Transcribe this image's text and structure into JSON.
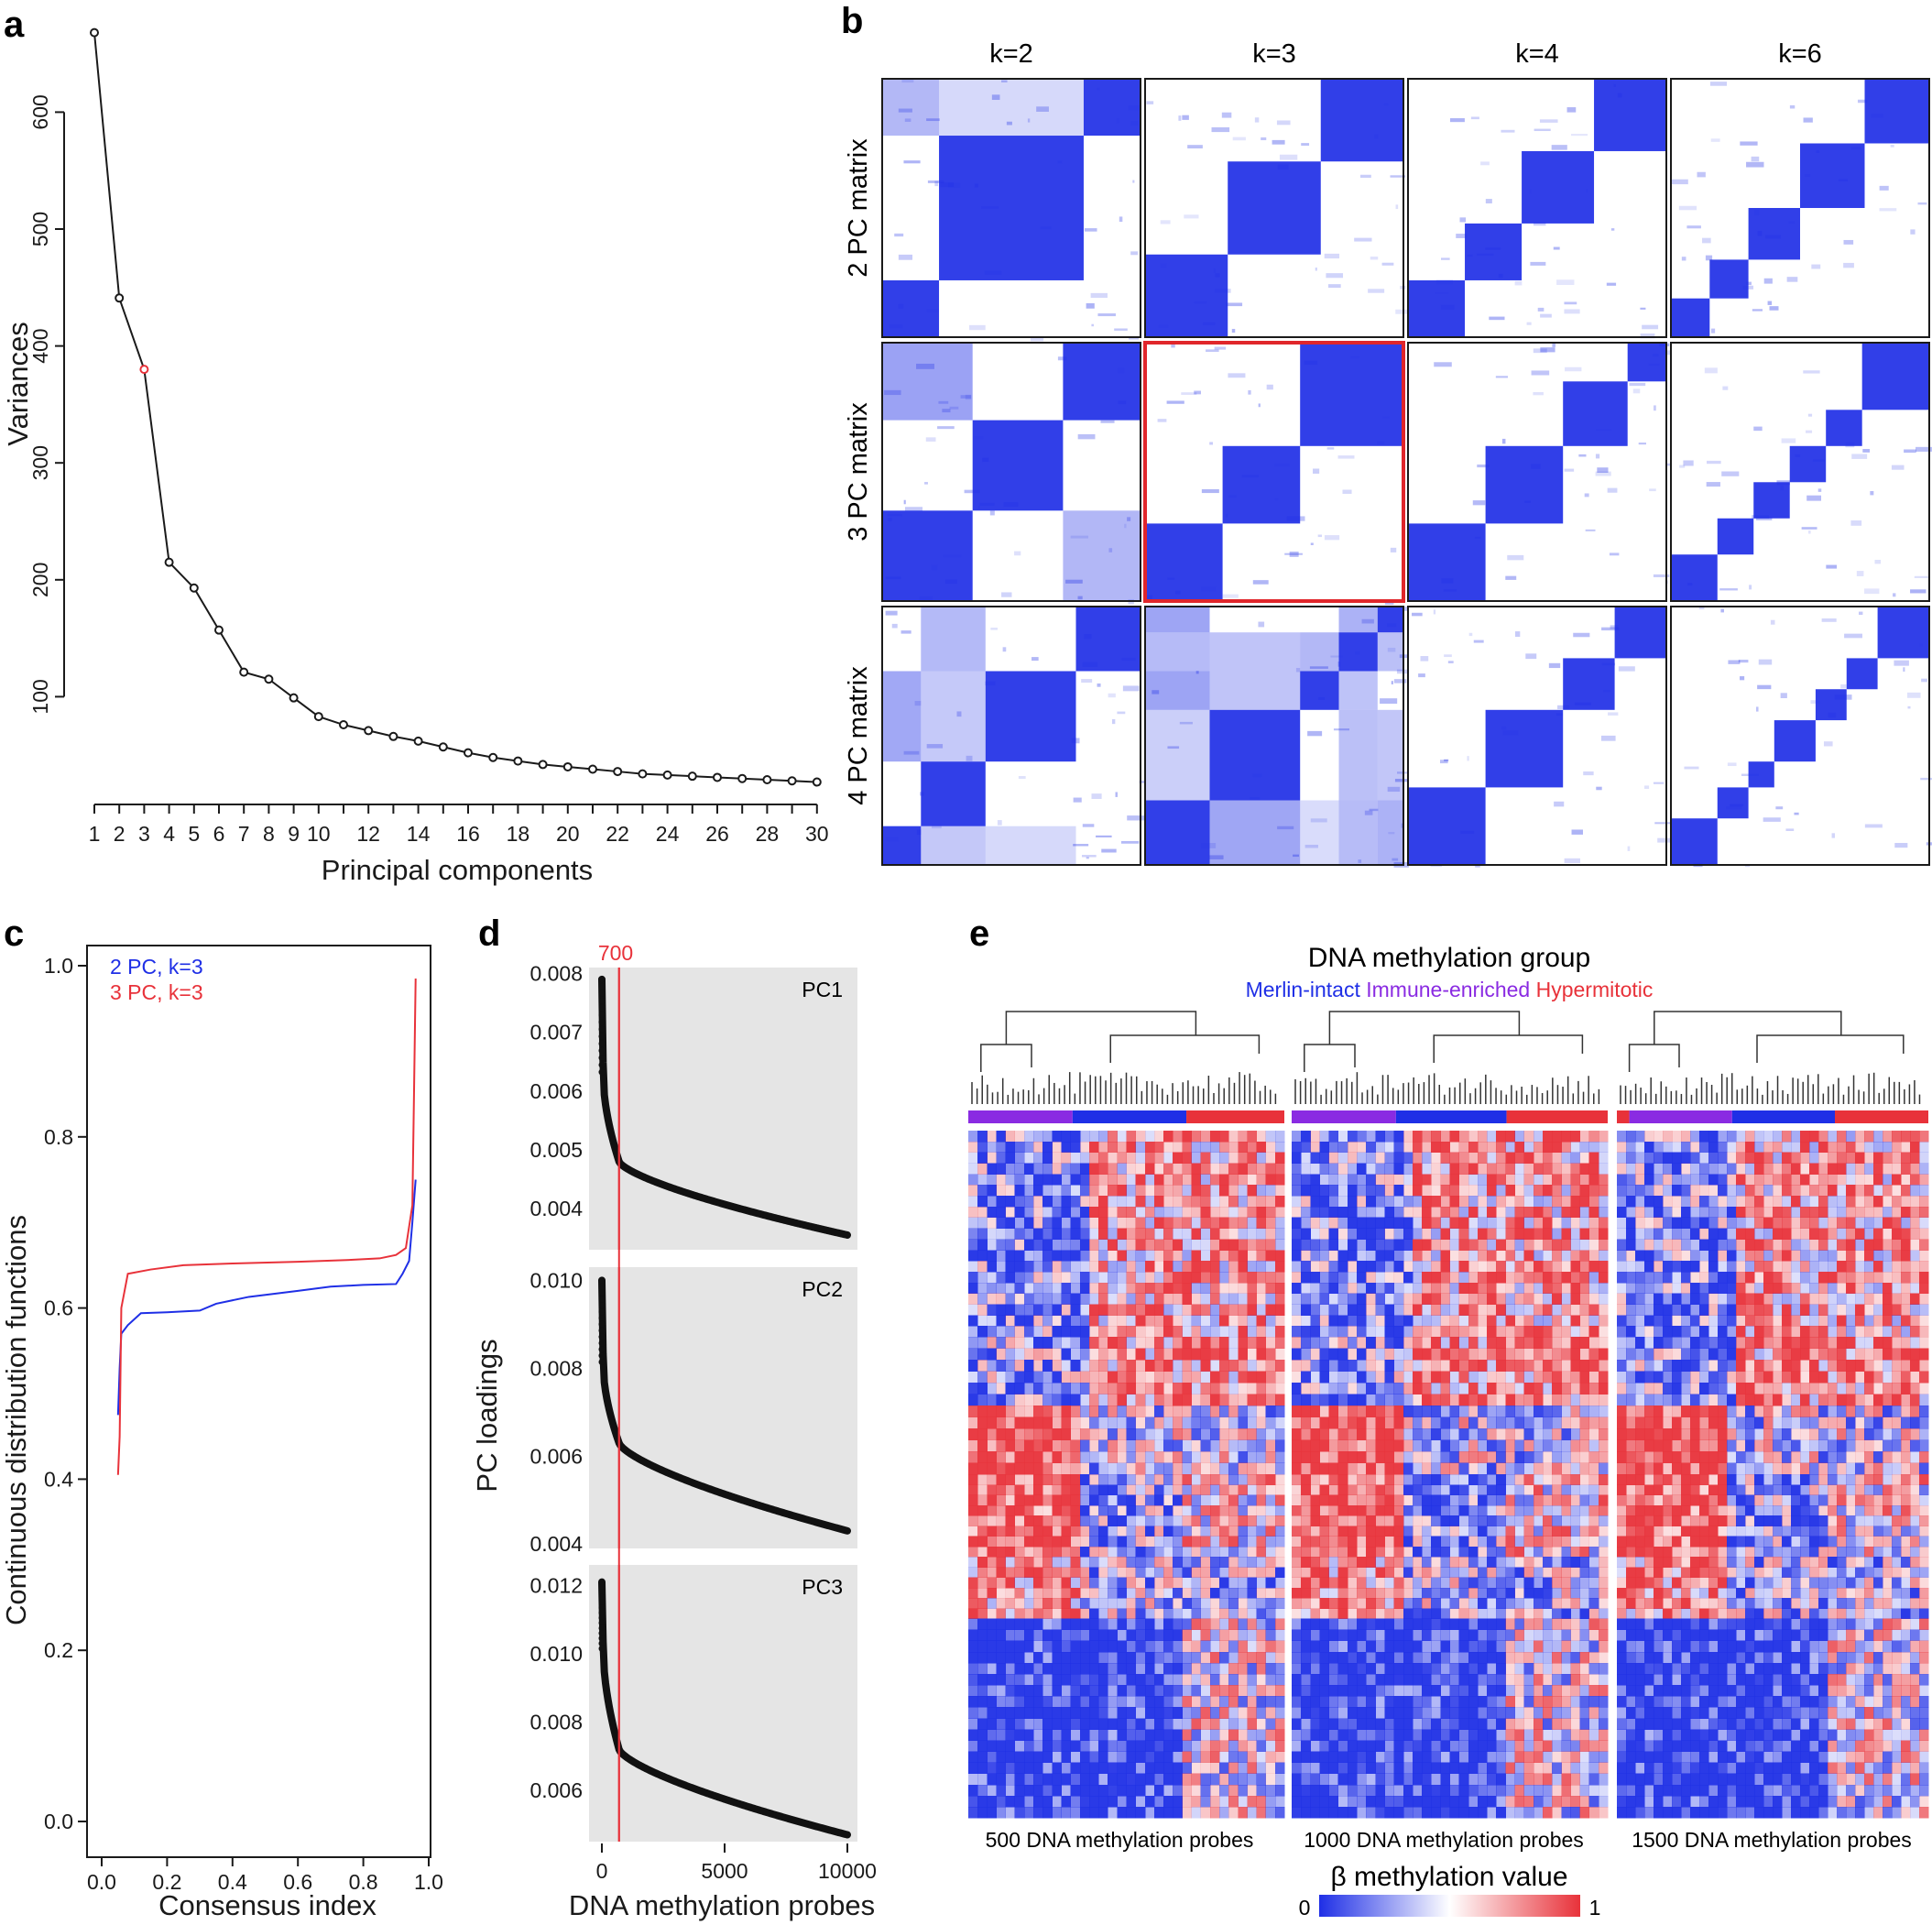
{
  "panels": {
    "a": "a",
    "b": "b",
    "c": "c",
    "d": "d",
    "e": "e"
  },
  "colors": {
    "blue": "#1f2fe6",
    "red": "#e8323a",
    "purple": "#8a2be2",
    "highlight": "#e0262b",
    "pcgrey": "#e5e5e5"
  },
  "chart_data": [
    {
      "id": "a",
      "type": "line",
      "xlabel": "Principal components",
      "ylabel": "Variances",
      "x": [
        1,
        2,
        3,
        4,
        5,
        6,
        7,
        8,
        9,
        10,
        11,
        12,
        13,
        14,
        15,
        16,
        17,
        18,
        19,
        20,
        21,
        22,
        23,
        24,
        25,
        26,
        27,
        28,
        29,
        30
      ],
      "values": [
        668,
        441,
        380,
        215,
        193,
        157,
        121,
        115,
        99,
        83,
        76,
        71,
        66,
        62,
        57,
        52,
        48,
        45,
        42,
        40,
        38,
        36,
        34,
        33,
        32,
        31,
        30,
        29,
        28,
        27
      ],
      "highlight_index": 2,
      "xticks": [
        "1",
        "2",
        "3",
        "4",
        "5",
        "6",
        "7",
        "8",
        "9",
        "10",
        "12",
        "14",
        "16",
        "18",
        "20",
        "22",
        "24",
        "26",
        "28",
        "30"
      ],
      "yticks": [
        "100",
        "200",
        "300",
        "400",
        "500",
        "600"
      ],
      "ylim": [
        0,
        680
      ]
    },
    {
      "id": "b",
      "type": "heatmap",
      "col_labels": [
        "k=2",
        "k=3",
        "k=4",
        "k=6"
      ],
      "row_labels": [
        "2 PC matrix",
        "3 PC matrix",
        "4 PC matrix"
      ],
      "highlight": [
        1,
        1
      ],
      "clusters": [
        [
          [
            0.22,
            0.56,
            0.22
          ],
          [
            0.32,
            0.36,
            0.32
          ],
          [
            0.22,
            0.22,
            0.28,
            0.28
          ],
          [
            0.15,
            0.15,
            0.2,
            0.25,
            0.25
          ]
        ],
        [
          [
            0.35,
            0.35,
            0.3
          ],
          [
            0.3,
            0.3,
            0.4
          ],
          [
            0.3,
            0.3,
            0.25,
            0.15
          ],
          [
            0.18,
            0.14,
            0.14,
            0.14,
            0.14,
            0.26
          ]
        ],
        [
          [
            0.15,
            0.25,
            0.35,
            0.25
          ],
          [
            0.25,
            0.35,
            0.15,
            0.15,
            0.1
          ],
          [
            0.3,
            0.3,
            0.2,
            0.2
          ],
          [
            0.18,
            0.12,
            0.1,
            0.16,
            0.12,
            0.12,
            0.2
          ]
        ]
      ]
    },
    {
      "id": "c",
      "type": "line",
      "xlabel": "Consensus index",
      "ylabel": "Continuous distribution functions",
      "legend": [
        "2 PC, k=3",
        "3 PC, k=3"
      ],
      "xticks": [
        "0.0",
        "0.2",
        "0.4",
        "0.6",
        "0.8",
        "1.0"
      ],
      "yticks": [
        "0.0",
        "0.2",
        "0.4",
        "0.6",
        "0.8",
        "1.0"
      ],
      "series": [
        {
          "name": "2 PC, k=3",
          "color": "blue",
          "x": [
            0.05,
            0.055,
            0.06,
            0.08,
            0.12,
            0.2,
            0.3,
            0.35,
            0.45,
            0.6,
            0.7,
            0.8,
            0.9,
            0.92,
            0.94,
            0.95,
            0.96
          ],
          "y": [
            0.475,
            0.53,
            0.57,
            0.58,
            0.594,
            0.595,
            0.597,
            0.605,
            0.613,
            0.62,
            0.625,
            0.627,
            0.628,
            0.64,
            0.655,
            0.7,
            0.75
          ]
        },
        {
          "name": "3 PC, k=3",
          "color": "red",
          "x": [
            0.05,
            0.055,
            0.06,
            0.08,
            0.15,
            0.25,
            0.4,
            0.6,
            0.75,
            0.85,
            0.9,
            0.93,
            0.95,
            0.955,
            0.96
          ],
          "y": [
            0.405,
            0.45,
            0.6,
            0.64,
            0.645,
            0.65,
            0.652,
            0.654,
            0.656,
            0.658,
            0.662,
            0.67,
            0.72,
            0.85,
            0.985
          ]
        }
      ],
      "xlim": [
        0,
        1
      ],
      "ylim": [
        0,
        1
      ]
    },
    {
      "id": "d",
      "type": "scatter",
      "xlabel": "DNA methylation probes",
      "ylabel": "PC loadings",
      "cutoff": 700,
      "cutoff_label": "700",
      "xticks": [
        "0",
        "5000",
        "10000"
      ],
      "xlim": [
        -300,
        10300
      ],
      "panels": [
        {
          "name": "PC1",
          "ylim": [
            0.0033,
            0.0081
          ],
          "yticks": [
            "0.004",
            "0.005",
            "0.006",
            "0.007",
            "0.008"
          ],
          "ytick_values": [
            0.004,
            0.005,
            0.006,
            0.007,
            0.008
          ],
          "start": 0.0079,
          "mid": 0.0062,
          "knee": 0.0048,
          "end": 0.00355
        },
        {
          "name": "PC2",
          "ylim": [
            0.0039,
            0.0103
          ],
          "yticks": [
            "0.004",
            "0.006",
            "0.008",
            "0.010"
          ],
          "ytick_values": [
            0.004,
            0.006,
            0.008,
            0.01
          ],
          "start": 0.01,
          "mid": 0.008,
          "knee": 0.0063,
          "end": 0.0043
        },
        {
          "name": "PC3",
          "ylim": [
            0.0045,
            0.0126
          ],
          "yticks": [
            "0.006",
            "0.008",
            "0.010",
            "0.012"
          ],
          "ytick_values": [
            0.006,
            0.008,
            0.01,
            0.012
          ],
          "start": 0.0121,
          "mid": 0.01,
          "knee": 0.0072,
          "end": 0.0047
        }
      ]
    },
    {
      "id": "e",
      "type": "heatmap",
      "title": "DNA methylation group",
      "groups": [
        {
          "name": "Merlin-intact",
          "color": "blue"
        },
        {
          "name": "Immune-enriched",
          "color": "purple"
        },
        {
          "name": "Hypermitotic",
          "color": "red"
        }
      ],
      "panels": [
        "500 DNA methylation probes",
        "1000 DNA methylation probes",
        "1500 DNA methylation probes"
      ],
      "scale_title": "β methylation value",
      "scale_min": "0",
      "scale_max": "1"
    }
  ]
}
